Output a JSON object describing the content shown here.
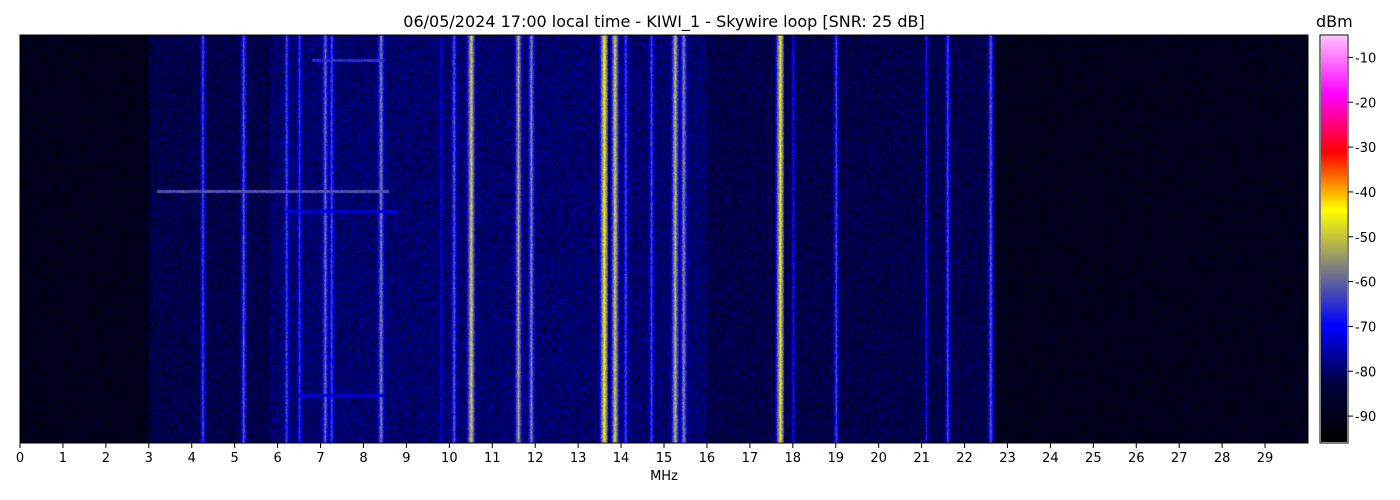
{
  "chart_data": {
    "type": "heatmap",
    "title": "06/05/2024 17:00 local time - KIWI_1 - Skywire loop [SNR: 25 dB]",
    "xlabel": "MHz",
    "ylabel": "",
    "x_ticks": [
      "0",
      "1",
      "2",
      "3",
      "4",
      "5",
      "6",
      "7",
      "8",
      "9",
      "10",
      "11",
      "12",
      "13",
      "14",
      "15",
      "16",
      "17",
      "18",
      "19",
      "20",
      "21",
      "22",
      "23",
      "24",
      "25",
      "26",
      "27",
      "28",
      "29"
    ],
    "xlim": [
      0,
      30
    ],
    "colorbar": {
      "label": "dBm",
      "ticks": [
        "-10",
        "-20",
        "-30",
        "-40",
        "-50",
        "-60",
        "-70",
        "-80",
        "-90"
      ],
      "tick_values": [
        -10,
        -20,
        -30,
        -40,
        -50,
        -60,
        -70,
        -80,
        -90
      ],
      "range": [
        -96,
        -5
      ],
      "colormap": [
        "#000000",
        "#00003c",
        "#0000ff",
        "#808080",
        "#ffff00",
        "#ff0000",
        "#ff00ff",
        "#ffc0ff"
      ]
    },
    "noise_floor_dbm": -90,
    "signals": [
      {
        "mhz": 3.6,
        "dbm": -82
      },
      {
        "mhz": 4.25,
        "dbm": -62
      },
      {
        "mhz": 5.2,
        "dbm": -60
      },
      {
        "mhz": 6.2,
        "dbm": -62
      },
      {
        "mhz": 6.5,
        "dbm": -64
      },
      {
        "mhz": 7.1,
        "dbm": -58
      },
      {
        "mhz": 7.25,
        "dbm": -62
      },
      {
        "mhz": 8.4,
        "dbm": -56
      },
      {
        "mhz": 9.8,
        "dbm": -70
      },
      {
        "mhz": 10.1,
        "dbm": -60
      },
      {
        "mhz": 10.5,
        "dbm": -48
      },
      {
        "mhz": 11.6,
        "dbm": -52
      },
      {
        "mhz": 11.9,
        "dbm": -56
      },
      {
        "mhz": 13.6,
        "dbm": -44
      },
      {
        "mhz": 13.85,
        "dbm": -48
      },
      {
        "mhz": 14.1,
        "dbm": -62
      },
      {
        "mhz": 14.7,
        "dbm": -62
      },
      {
        "mhz": 15.25,
        "dbm": -50
      },
      {
        "mhz": 15.45,
        "dbm": -55
      },
      {
        "mhz": 17.7,
        "dbm": -45
      },
      {
        "mhz": 18.0,
        "dbm": -68
      },
      {
        "mhz": 19.0,
        "dbm": -62
      },
      {
        "mhz": 21.1,
        "dbm": -68
      },
      {
        "mhz": 21.6,
        "dbm": -62
      },
      {
        "mhz": 22.6,
        "dbm": -60
      }
    ],
    "horizontal_bands": [
      {
        "row": 0.38,
        "x_start_mhz": 3.2,
        "x_end_mhz": 8.6,
        "dbm": -62
      },
      {
        "row": 0.06,
        "x_start_mhz": 6.8,
        "x_end_mhz": 8.5,
        "dbm": -66
      },
      {
        "row": 0.43,
        "x_start_mhz": 6.2,
        "x_end_mhz": 8.8,
        "dbm": -72
      },
      {
        "row": 0.88,
        "x_start_mhz": 6.5,
        "x_end_mhz": 8.5,
        "dbm": -72
      }
    ]
  }
}
